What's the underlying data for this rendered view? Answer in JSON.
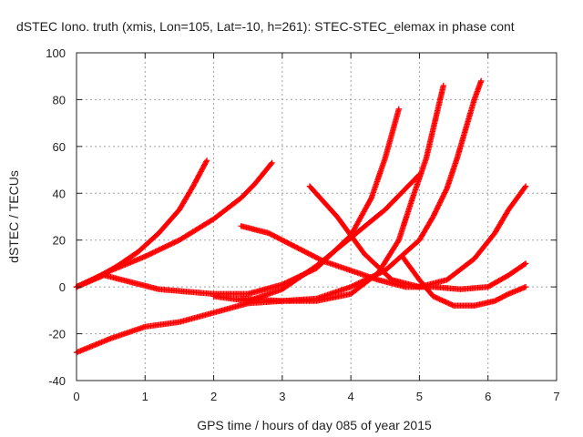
{
  "chart_data": {
    "type": "scatter",
    "title": "dSTEC Iono. truth (xmis, Lon=105, Lat=-10, h=261): STEC-STEC_elemax in phase cont",
    "xlabel": "GPS time / hours of day 085 of year 2015",
    "ylabel": "dSTEC  / TECUs",
    "xlim": [
      0,
      7
    ],
    "ylim": [
      -40,
      100
    ],
    "xticks": [
      "0",
      "1",
      "2",
      "3",
      "4",
      "5",
      "6",
      "7"
    ],
    "yticks": [
      "-40",
      "-20",
      "0",
      "20",
      "40",
      "60",
      "80",
      "100"
    ],
    "grid": true,
    "marker": "plus",
    "color": "#ff0000",
    "series": [
      {
        "x": [
          0.0,
          0.3,
          0.6,
          0.9,
          1.2,
          1.5,
          1.7,
          1.9
        ],
        "y": [
          0,
          4,
          9,
          15,
          23,
          33,
          43,
          54
        ]
      },
      {
        "x": [
          0.0,
          0.5,
          1.0,
          1.5,
          2.0,
          2.4,
          2.6,
          2.85
        ],
        "y": [
          0,
          7,
          13,
          20,
          29,
          38,
          44,
          53
        ]
      },
      {
        "x": [
          0.0,
          0.4,
          0.8,
          1.2,
          1.6,
          2.0,
          2.5,
          3.0,
          3.5,
          4.0,
          4.3,
          4.5,
          4.7
        ],
        "y": [
          0,
          5,
          2,
          -1,
          -2,
          -3,
          -3,
          1,
          8,
          22,
          38,
          55,
          76
        ]
      },
      {
        "x": [
          0.0,
          0.5,
          1.0,
          1.5,
          2.0,
          2.5,
          3.0,
          3.5,
          4.0,
          4.4,
          4.7,
          4.9,
          5.1,
          5.35
        ],
        "y": [
          -28,
          -22,
          -17,
          -15,
          -11,
          -7,
          -6,
          -6,
          -3,
          6,
          20,
          38,
          55,
          86
        ]
      },
      {
        "x": [
          2.0,
          2.5,
          3.0,
          3.5,
          4.0,
          4.5,
          5.0
        ],
        "y": [
          -4,
          -6,
          -1,
          9,
          21,
          33,
          48
        ]
      },
      {
        "x": [
          2.4,
          2.8,
          3.2,
          3.6,
          4.0,
          4.4,
          4.8,
          5.2,
          5.6,
          6.0,
          6.3,
          6.55
        ],
        "y": [
          26,
          23,
          17,
          11,
          7,
          3,
          0,
          0,
          -1,
          0,
          5,
          10
        ]
      },
      {
        "x": [
          3.4,
          3.8,
          4.2,
          4.6,
          5.0,
          5.4,
          5.8,
          6.1,
          6.3,
          6.55
        ],
        "y": [
          43,
          30,
          14,
          3,
          0,
          3,
          12,
          23,
          33,
          43
        ]
      },
      {
        "x": [
          2.4,
          3.0,
          3.5,
          4.0,
          4.5,
          5.0,
          5.2,
          5.4,
          5.55,
          5.7,
          5.8,
          5.9
        ],
        "y": [
          -5,
          -6,
          -5,
          0,
          7,
          20,
          30,
          42,
          55,
          70,
          80,
          88
        ]
      },
      {
        "x": [
          4.75,
          5.0,
          5.2,
          5.5,
          5.8,
          6.1,
          6.3,
          6.55
        ],
        "y": [
          13,
          3,
          -4,
          -8,
          -8,
          -6,
          -3,
          0
        ]
      }
    ]
  }
}
